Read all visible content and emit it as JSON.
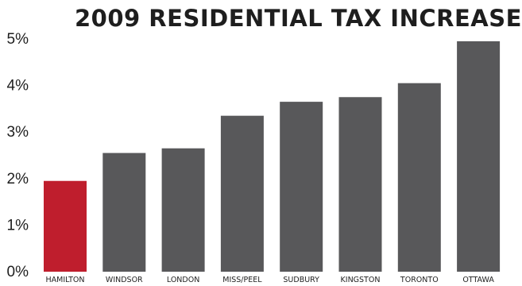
{
  "chart_data": {
    "type": "bar",
    "title": "2009 RESIDENTIAL TAX INCREASE",
    "xlabel": "",
    "ylabel": "",
    "categories": [
      "HAMILTON",
      "WINDSOR",
      "LONDON",
      "MISS/PEEL",
      "SUDBURY",
      "KINGSTON",
      "TORONTO",
      "OTTAWA"
    ],
    "values": [
      1.95,
      2.55,
      2.65,
      3.35,
      3.65,
      3.75,
      4.05,
      4.95
    ],
    "y_ticks": [
      "0%",
      "1%",
      "2%",
      "3%",
      "4%",
      "5%"
    ],
    "ylim": [
      0,
      5
    ],
    "grid": false,
    "legend": "none",
    "colors": {
      "highlight": "#bf1e2d",
      "default": "#58585a",
      "text": "#1e1e1e"
    },
    "highlight_category": "HAMILTON"
  }
}
